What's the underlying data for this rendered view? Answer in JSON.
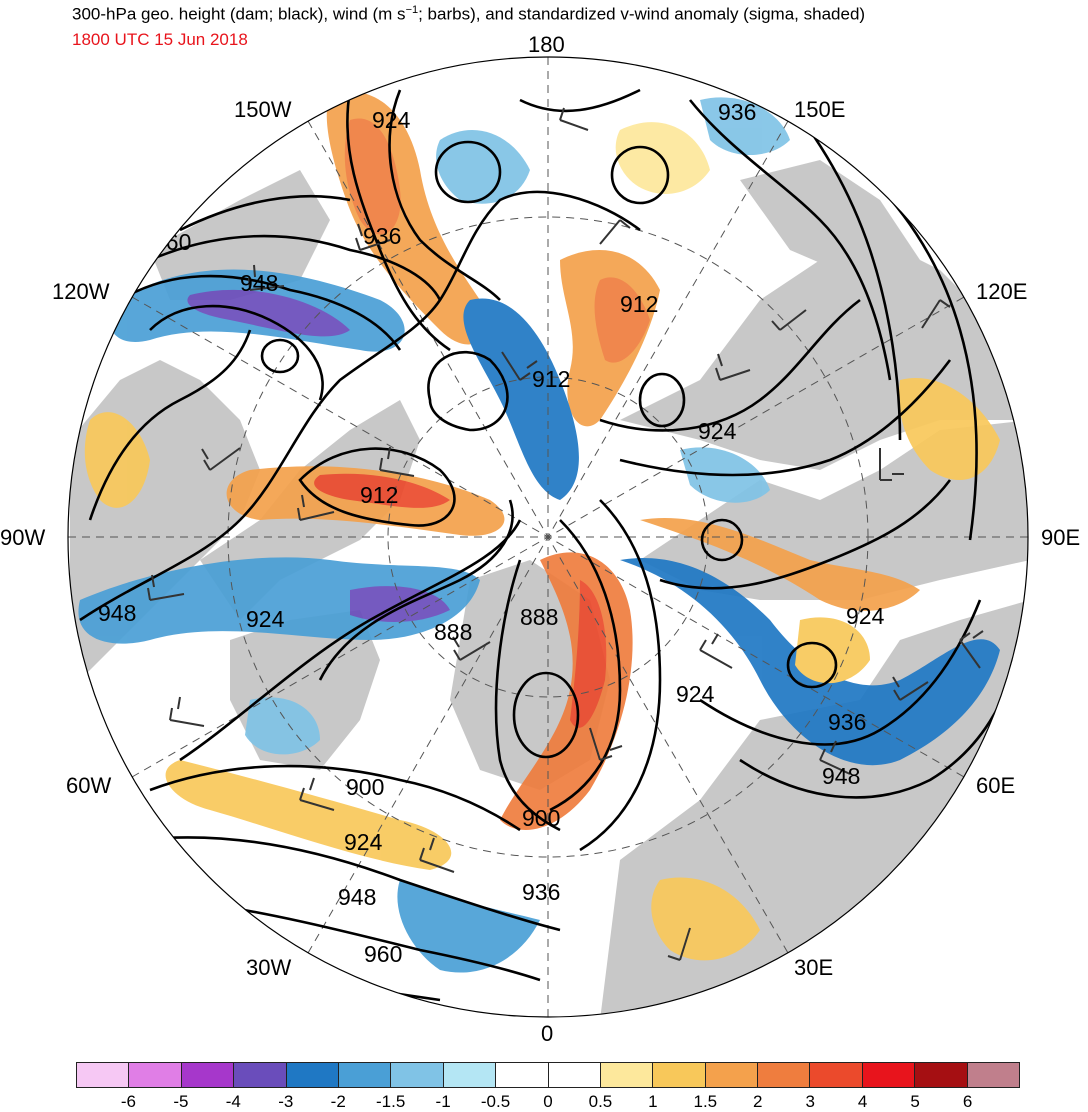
{
  "header": {
    "title_main": "300-hPa geo. height (dam; black), wind (m s",
    "title_sup": "−1",
    "title_rest": "; barbs), and standardized v-wind anomaly (sigma, shaded)",
    "valid_time": "1800 UTC 15 Jun 2018",
    "valid_time_color": "#e8141c"
  },
  "longitude_labels": [
    {
      "id": "180",
      "text": "180"
    },
    {
      "id": "150e",
      "text": "150E"
    },
    {
      "id": "120e",
      "text": "120E"
    },
    {
      "id": "90e",
      "text": "90E"
    },
    {
      "id": "60e",
      "text": "60E"
    },
    {
      "id": "30e",
      "text": "30E"
    },
    {
      "id": "0",
      "text": "0"
    },
    {
      "id": "30w",
      "text": "30W"
    },
    {
      "id": "60w",
      "text": "60W"
    },
    {
      "id": "90w",
      "text": "90W"
    },
    {
      "id": "120w",
      "text": "120W"
    },
    {
      "id": "150w",
      "text": "150W"
    }
  ],
  "contour_labels": [
    "924",
    "936",
    "960",
    "948",
    "912",
    "912",
    "924",
    "936",
    "912",
    "948",
    "924",
    "888",
    "888",
    "924",
    "924",
    "936",
    "948",
    "900",
    "900",
    "924",
    "948",
    "936",
    "960"
  ],
  "colorbar": {
    "colors": [
      "#f6c8f4",
      "#e07ee6",
      "#a637cb",
      "#6a4dbb",
      "#1f78c4",
      "#4a9fd6",
      "#80c3e6",
      "#b4e6f4",
      "#ffffff",
      "#ffffff",
      "#fde89c",
      "#f8c85a",
      "#f4a14c",
      "#ef7d3e",
      "#eb4a2c",
      "#e8141c",
      "#a50f12",
      "#c07f8c"
    ],
    "tick_labels": [
      "-6",
      "-5",
      "-4",
      "-3",
      "-2",
      "-1.5",
      "-1",
      "-0.5",
      "0",
      "0.5",
      "1",
      "1.5",
      "2",
      "3",
      "4",
      "5",
      "6"
    ]
  }
}
